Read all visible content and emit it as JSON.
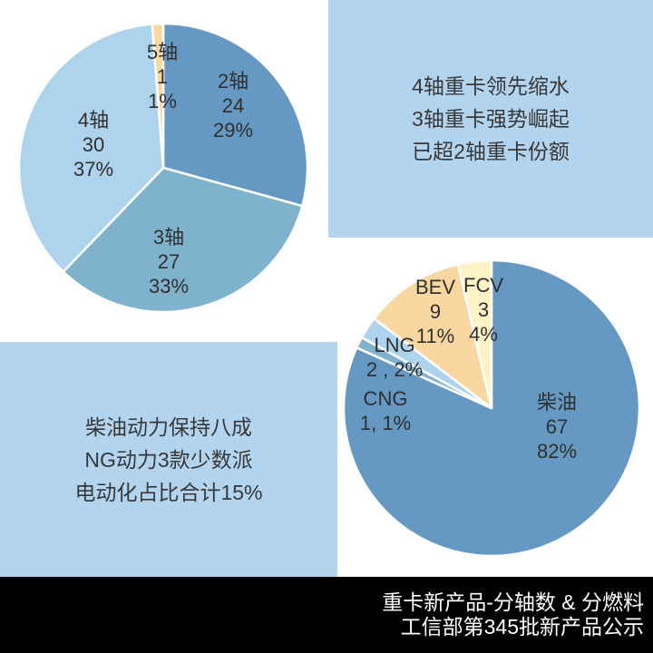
{
  "colors": {
    "background": "#FFFFFF",
    "annotation_box_bg": "#B2D4EF",
    "footer_bg": "#000000",
    "label_text": "#303030",
    "footer_text": "#FFFFFF",
    "slice_border": "#FFFFFF",
    "steel_blue": "#6598C2",
    "teal_blue": "#7FB2CC",
    "light_blue": "#AED3EC",
    "tan": "#F8D8A0",
    "cream": "#FDF3C7"
  },
  "annotations": {
    "axle_box": {
      "lines": [
        "4轴重卡领先缩水",
        "3轴重卡强势崛起",
        "已超2轴重卡份额"
      ]
    },
    "fuel_box": {
      "lines": [
        "柴油动力保持八成",
        "NG动力3款少数派",
        "电动化占比合计15%"
      ]
    }
  },
  "footer": {
    "line1": "重卡新产品-分轴数 & 分燃料",
    "line2": "工信部第345批新产品公示"
  },
  "chart_data": [
    {
      "type": "pie",
      "title": "重卡新产品-分轴数",
      "direction": "clockwise",
      "start_angle_deg": 0,
      "total": 82,
      "slices": [
        {
          "id": "axle2",
          "label": "2轴",
          "value": 24,
          "pct": "29%",
          "color": "#6598C2",
          "lines": [
            "2轴",
            "24",
            "29%"
          ]
        },
        {
          "id": "axle3",
          "label": "3轴",
          "value": 27,
          "pct": "33%",
          "color": "#7FB2CC",
          "lines": [
            "3轴",
            "27",
            "33%"
          ]
        },
        {
          "id": "axle4",
          "label": "4轴",
          "value": 30,
          "pct": "37%",
          "color": "#AED3EC",
          "lines": [
            "4轴",
            "30",
            "37%"
          ]
        },
        {
          "id": "axle5",
          "label": "5轴",
          "value": 1,
          "pct": "1%",
          "color": "#F8D8A0",
          "lines": [
            "5轴",
            "1",
            "1%"
          ]
        }
      ]
    },
    {
      "type": "pie",
      "title": "重卡新产品-分燃料",
      "direction": "clockwise",
      "start_angle_deg": 0,
      "total": 82,
      "slices": [
        {
          "id": "diesel",
          "label": "柴油",
          "value": 67,
          "pct": "82%",
          "color": "#6598C2",
          "lines": [
            "柴油",
            "67",
            "82%"
          ]
        },
        {
          "id": "cng",
          "label": "CNG",
          "value": 1,
          "pct": "1%",
          "color": "#7FB2CC",
          "lines": [
            "CNG",
            "1, 1%"
          ]
        },
        {
          "id": "lng",
          "label": "LNG",
          "value": 2,
          "pct": "2%",
          "color": "#AED3EC",
          "lines": [
            "LNG",
            "2 , 2%"
          ]
        },
        {
          "id": "bev",
          "label": "BEV",
          "value": 9,
          "pct": "11%",
          "color": "#F8D8A0",
          "lines": [
            "BEV",
            "9",
            "11%"
          ]
        },
        {
          "id": "fcv",
          "label": "FCV",
          "value": 3,
          "pct": "4%",
          "color": "#FDF3C7",
          "lines": [
            "FCV",
            "3",
            "4%"
          ]
        }
      ]
    }
  ]
}
